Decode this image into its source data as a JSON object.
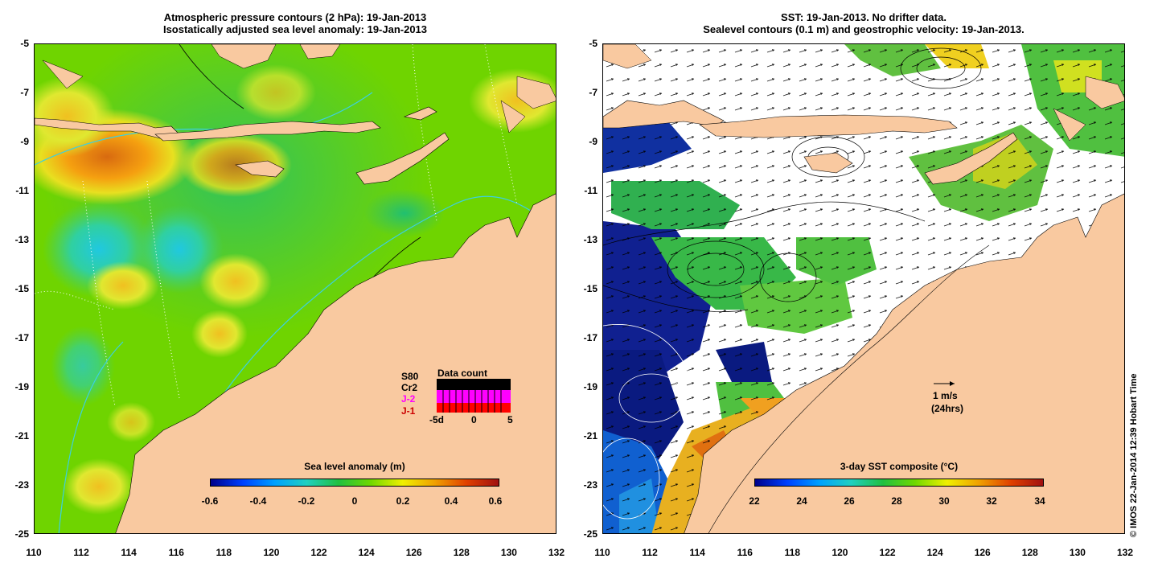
{
  "left_panel": {
    "title_line1": "Atmospheric pressure contours (2 hPa): 19-Jan-2013",
    "title_line2": "Isostatically adjusted sea level anomaly: 19-Jan-2013",
    "colorbar_title": "Sea level anomaly (m)",
    "colorbar_labels": [
      "-0.6",
      "-0.4",
      "-0.2",
      "0",
      "0.2",
      "0.4",
      "0.6"
    ],
    "legend": {
      "sats": [
        "S80",
        "Cr2",
        "J-2",
        "J-1"
      ],
      "sat_colors": [
        "#000000",
        "#000000",
        "#ff00ff",
        "#cc0000"
      ],
      "title": "Data count",
      "axis_labels": [
        "-5d",
        "0",
        "5"
      ]
    }
  },
  "right_panel": {
    "title_line1": "SST: 19-Jan-2013. No drifter data.",
    "title_line2": "Sealevel contours (0.1 m) and geostrophic velocity: 19-Jan-2013.",
    "colorbar_title": "3-day SST composite (°C)",
    "colorbar_labels": [
      "22",
      "24",
      "26",
      "28",
      "30",
      "32",
      "34"
    ],
    "scale_label_1": "1 m/s",
    "scale_label_2": "(24hrs)"
  },
  "y_ticks": [
    "-5",
    "-7",
    "-9",
    "-11",
    "-13",
    "-15",
    "-17",
    "-19",
    "-21",
    "-23",
    "-25"
  ],
  "x_ticks": [
    "110",
    "112",
    "114",
    "116",
    "118",
    "120",
    "122",
    "124",
    "126",
    "128",
    "130",
    "132"
  ],
  "copyright": "© IMOS 22-Jan-2014 12:39 Hobart Time",
  "colors": {
    "land": "#f9c9a0",
    "ocean_base": "#6fd400",
    "contour": "#3cd0e0"
  }
}
